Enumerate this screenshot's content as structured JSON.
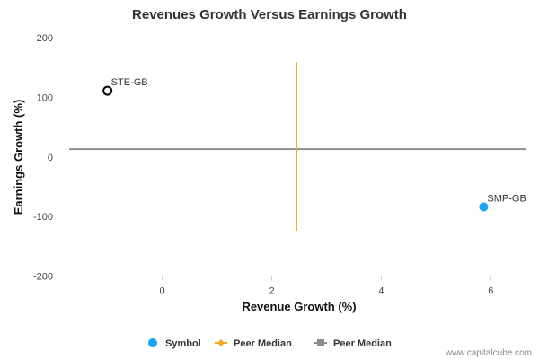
{
  "chart_data": {
    "type": "scatter",
    "title": "Revenues Growth Versus Earnings Growth",
    "xlabel": "Revenue Growth (%)",
    "ylabel": "Earnings Growth (%)",
    "xlim": [
      -1.7,
      6.7
    ],
    "ylim": [
      -200,
      200
    ],
    "xticks": [
      0,
      2,
      4,
      6
    ],
    "yticks": [
      200,
      100,
      0,
      -100,
      -200
    ],
    "points": [
      {
        "label": "STE-GB",
        "x": -1.0,
        "y": 111,
        "style": "hollow",
        "color": "#000000"
      },
      {
        "label": "SMP-GB",
        "x": 5.87,
        "y": -84,
        "style": "filled",
        "color": "#1aa3f0"
      }
    ],
    "peer_median_revenue": {
      "x": 2.45,
      "y_range": [
        -124,
        159
      ],
      "color": "#f5a623"
    },
    "peer_median_earnings": {
      "y": 13,
      "color": "#8c8c8c"
    },
    "legend": [
      {
        "label": "Symbol",
        "color": "#1aa3f0",
        "marker": "circle"
      },
      {
        "label": "Peer Median",
        "color": "#f5a623",
        "marker": "diamond-line"
      },
      {
        "label": "Peer Median",
        "color": "#8c8c8c",
        "marker": "square-line"
      }
    ],
    "credit": "www.capitalcube.com"
  }
}
